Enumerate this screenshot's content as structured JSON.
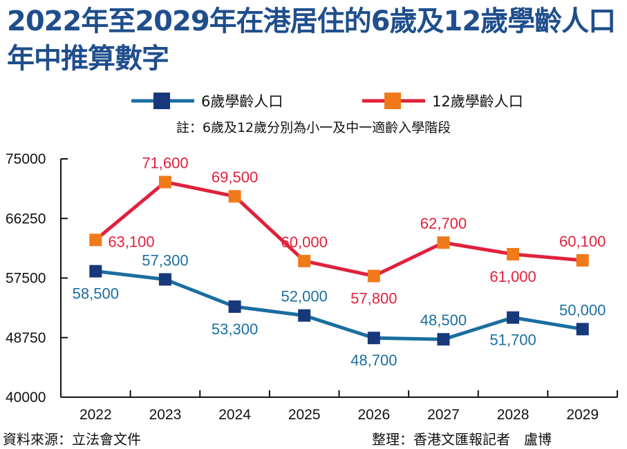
{
  "title": "2022年至2029年在港居住的6歲及12歲學齡人口年中推算數字",
  "note": "註：6歲及12歲分別為小一及中一適齡入學階段",
  "source": "資料來源：立法會文件",
  "credit": "整理：香港文匯報記者　盧博",
  "colors": {
    "title": "#1f4e8c",
    "series6": "#1a6ea0",
    "series12": "#e0213b",
    "marker6": "#17387a",
    "marker12": "#f07a1a"
  },
  "chart_data": {
    "type": "line",
    "categories": [
      "2022",
      "2023",
      "2024",
      "2025",
      "2026",
      "2027",
      "2028",
      "2029"
    ],
    "y_ticks": [
      "75000",
      "66250",
      "57500",
      "48750",
      "40000"
    ],
    "ylim": [
      40000,
      75000
    ],
    "grid": false,
    "legend_position": "top-center",
    "series": [
      {
        "name": "6歲學齡人口",
        "values": [
          58500,
          57300,
          53300,
          52000,
          48700,
          48500,
          51700,
          50000
        ],
        "labels": [
          "58,500",
          "57,300",
          "53,300",
          "52,000",
          "48,700",
          "48,500",
          "51,700",
          "50,000"
        ]
      },
      {
        "name": "12歲學齡人口",
        "values": [
          63100,
          71600,
          69500,
          60000,
          57800,
          62700,
          61000,
          60100
        ],
        "labels": [
          "63,100",
          "71,600",
          "69,500",
          "60,000",
          "57,800",
          "62,700",
          "61,000",
          "60,100"
        ]
      }
    ]
  }
}
